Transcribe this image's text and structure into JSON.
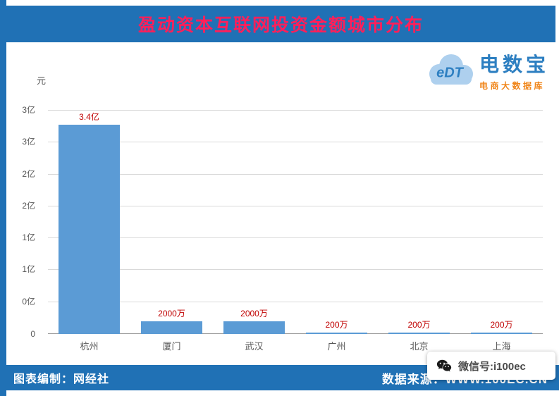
{
  "header": {
    "title": "盈动资本互联网投资金额城市分布"
  },
  "logo": {
    "cloud_text": "eDT",
    "name": "电数宝",
    "subtitle": "电商大数据库"
  },
  "footer": {
    "credit": "图表编制：网经社",
    "source": "数据来源：WWW.100EC.CN"
  },
  "wechat_badge": {
    "label": "微信号:i100ec"
  },
  "chart_data": {
    "type": "bar",
    "title": "盈动资本互联网投资金额城市分布",
    "unit_label": "元",
    "categories": [
      "杭州",
      "厦门",
      "武汉",
      "广州",
      "北京",
      "上海"
    ],
    "values": [
      340000000,
      20000000,
      20000000,
      2000000,
      2000000,
      2000000
    ],
    "value_labels": [
      "3.4亿",
      "2000万",
      "2000万",
      "200万",
      "200万",
      "200万"
    ],
    "y_axis": {
      "tick_labels_bottom_to_top": [
        "0",
        "0亿",
        "1亿",
        "1亿",
        "2亿",
        "2亿",
        "3亿",
        "3亿"
      ],
      "tick_values": [
        0,
        50000000,
        100000000,
        150000000,
        200000000,
        250000000,
        300000000,
        350000000
      ],
      "max": 350000000
    },
    "grid": true,
    "legend": false,
    "colors": {
      "bar": "#5b9bd5",
      "value_label": "#c00000",
      "axis_text": "#595959",
      "gridline": "#d9d9d9",
      "band": "#2071b5",
      "title_text": "#ff1f5a"
    }
  }
}
